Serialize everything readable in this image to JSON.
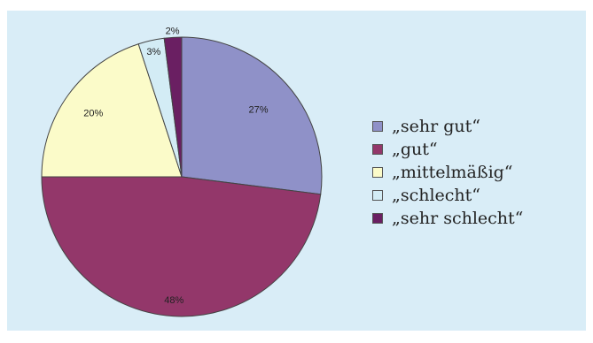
{
  "chart_data": {
    "type": "pie",
    "categories": [
      "„sehr gut“",
      "„gut“",
      "„mittelmäßig“",
      "„schlecht“",
      "„sehr schlecht“"
    ],
    "values": [
      27,
      48,
      20,
      3,
      2
    ],
    "value_labels": [
      "27%",
      "48%",
      "20%",
      "3%",
      "2%"
    ],
    "colors": [
      "#8f91c8",
      "#93376a",
      "#fbfbc9",
      "#d3ecf5",
      "#6a1f62"
    ],
    "legend_position": "right"
  }
}
